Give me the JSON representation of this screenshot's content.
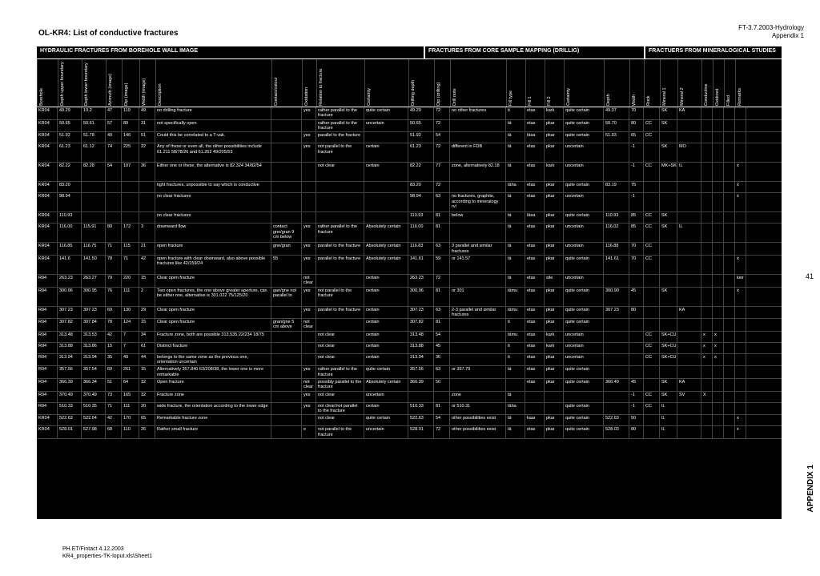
{
  "page": {
    "title": "OL-KR4: List of conductive fractures",
    "doc_ref": "FT-3.7.2003-Hydrology",
    "appendix_top": "Appendix 1",
    "side_num": "41",
    "appendix_side": "APPENDIX 1",
    "footer1": "PH.ET/Fintact 4.12.2003",
    "footer2": "KR4_properties-TK-loput.xls\\Sheet1"
  },
  "sections": {
    "s1": "HYDRAULIC FRACTURES FROM BOREHOLE WALL IMAGE",
    "s2": "FRACTURES FROM CORE SAMPLE MAPPING (DRILLIG)",
    "s3": "FRACTUERS FROM MINERALOGICAL STUDIES"
  },
  "columns": [
    "Borehole",
    "Depth upper boundary",
    "Depth lower boundary",
    "Azimuth (image)",
    "Dip (image)",
    "Width (image)",
    "Description",
    "Contact/colour",
    "Oxidation",
    "Relation to fracture",
    "Certainty",
    "Drilling depth",
    "Dip (drilling)",
    "Drill note",
    "Fill type",
    "Fill 1",
    "Fill 2",
    "Certainty",
    "Depth",
    "Width",
    "Rock",
    "Mineral 1",
    "Mineral 2",
    "Conductive",
    "Oxidized",
    "Filled",
    "Remarks"
  ],
  "rows": [
    {
      "c": [
        "KR04",
        "49.29",
        "19.2",
        "47",
        "119",
        "49",
        "no drilling fracture",
        "",
        "yes",
        "rather parallel to the fracture",
        "quite certain",
        "49.29",
        "72",
        "no other fractures",
        "ti",
        "etas",
        "kark",
        "quite certain",
        "49.37",
        "70",
        "",
        "SK",
        "KA",
        "",
        "",
        "",
        ""
      ]
    },
    {
      "c": [
        "KR04",
        "50.65",
        "50.61",
        "57",
        "89",
        "31",
        "not specifically open",
        "",
        "",
        "rather parallel to the fracture",
        "uncertain",
        "50.65",
        "72",
        "",
        "tä",
        "etas",
        "pkar",
        "quite certain",
        "50.70",
        "80",
        "CC",
        "SK",
        "",
        "",
        "",
        "",
        ""
      ]
    },
    {
      "c": [
        "KR04",
        "51.92",
        "51.78",
        "49",
        "146",
        "51",
        "Could this be correlated to a T-vak.",
        "",
        "yes",
        "parallel to the fracture",
        "",
        "51.92",
        "54",
        "",
        "tä",
        "täsa",
        "pkar",
        "quite certain",
        "51.93",
        "65",
        "CC",
        "",
        "",
        "",
        "",
        "",
        ""
      ]
    },
    {
      "c": [
        "KR04",
        "61.23",
        "61.12",
        "74",
        "225",
        "22",
        "Any of these or even all, the other possibilities include 61.211 58/78/26 and 61.262 49/205/53",
        "",
        "yes",
        "not parallel to the fracture",
        "certain",
        "61.23",
        "72",
        "different in FDB",
        "tä",
        "etas",
        "pkar",
        "uncertain",
        "",
        "-1",
        "",
        "SK",
        "MO",
        "",
        "",
        "",
        ""
      ],
      "tall": true
    },
    {
      "c": [
        "KR04",
        "82.22",
        "82.28",
        "54",
        "107",
        "36",
        "Either one or these, the alternative is 82.324 34/82/54",
        "",
        "",
        "not clear",
        "certain",
        "82.22",
        "77",
        "zone, alternatively 82.18",
        "tä",
        "etas",
        "kark",
        "uncertain",
        "",
        "-1",
        "CC",
        "MK+SK",
        "IL",
        "",
        "",
        "",
        "x"
      ],
      "tall": true
    },
    {
      "c": [
        "KR04",
        "83.20",
        "",
        "",
        "",
        "",
        "tight fractures, unpossible to say which is conductive",
        "",
        "",
        "",
        "",
        "83.20",
        "72",
        "",
        "täha",
        "etas",
        "pkar",
        "quite certain",
        "83.19",
        "75",
        "",
        "",
        "",
        "",
        "",
        "",
        "x"
      ]
    },
    {
      "c": [
        "KR04",
        "98.94",
        "",
        "",
        "",
        "",
        "no clear fractures",
        "",
        "",
        "",
        "",
        "98.94",
        "63",
        "no fractures, graphite, according to mineralogy rvl",
        "tä",
        "etas",
        "pkar",
        "uncertain",
        "",
        "-1",
        "",
        "",
        "",
        "",
        "",
        "",
        "x"
      ],
      "tall": true
    },
    {
      "c": [
        "KR04",
        "110.93",
        "",
        "",
        "",
        "",
        "no clear fractures",
        "",
        "",
        "",
        "",
        "110.93",
        "81",
        "below",
        "tä",
        "täsa",
        "pkar",
        "quite certain",
        "110.93",
        "85",
        "CC",
        "SK",
        "",
        "",
        "",
        "",
        ""
      ]
    },
    {
      "c": [
        "KR04",
        "116.00",
        "115.91",
        "80",
        "172",
        "3",
        "downward flow",
        "contact gne/gran 9 cm below",
        "yes",
        "rather parallel to the fracture",
        "Absolutely certain",
        "116.00",
        "81",
        "",
        "tä",
        "etas",
        "pkar",
        "uncertain",
        "116.02",
        "85",
        "CC",
        "SK",
        "IL",
        "",
        "",
        "",
        ""
      ],
      "tall": true
    },
    {
      "c": [
        "KR04",
        "116.85",
        "116.75",
        "71",
        "115",
        "21",
        "open fracture",
        "gne/gran",
        "yes",
        "parallel to the fracture",
        "Absolutely certain",
        "116.83",
        "63",
        "3 parallel and similar fractures",
        "tä",
        "etas",
        "pkar",
        "uncertain",
        "116.88",
        "70",
        "CC",
        "",
        "",
        "",
        "",
        "",
        ""
      ]
    },
    {
      "c": [
        "KR04",
        "141.6",
        "141.50",
        "78",
        "71",
        "42",
        "open fracture with clear downward, also above possible fractures like 42/159/24",
        "55",
        "yes",
        "parallel to the fracture",
        "Absolutely certain",
        "141.61",
        "59",
        "or 141.57",
        "tä",
        "etas",
        "pkar",
        "quite certain",
        "141.61",
        "70",
        "CC",
        "",
        "",
        "",
        "",
        "",
        "x"
      ],
      "tall": true
    },
    {
      "c": [
        "R04",
        "263.23",
        "263.27",
        "79",
        "220",
        "15",
        "Clear open fracture",
        "",
        "not clear",
        "",
        "certain",
        "263.23",
        "72",
        "",
        "tä",
        "etas",
        "sile",
        "uncertain",
        "",
        "",
        "",
        "",
        "",
        "",
        "",
        "",
        "kior"
      ]
    },
    {
      "c": [
        "R04",
        "300.96",
        "300.95",
        "76",
        "111",
        "2",
        "Two open fractures, the one above greater aperture, can be either one, alternative is 301.022 75/125/20",
        "gan/gne not parallel to",
        "yes",
        "not parallel to the fracture",
        "certain",
        "300.96",
        "81",
        "or 301",
        "tämu",
        "etas",
        "pkar",
        "quite certain",
        "300.90",
        "45",
        "",
        "SK",
        "",
        "",
        "",
        "",
        "x"
      ],
      "tall": true
    },
    {
      "c": [
        "R04",
        "307.23",
        "307.23",
        "69",
        "130",
        "29",
        "Clear open fracture",
        "",
        "yes",
        "parallel to the fracture",
        "certain",
        "307.23",
        "63",
        "2-3 parallel and similar fractures",
        "tämu",
        "etas",
        "pkar",
        "quite certain",
        "307.23",
        "80",
        "",
        "",
        "KA",
        "",
        "",
        "",
        ""
      ]
    },
    {
      "c": [
        "R04",
        "307.82",
        "307.84",
        "78",
        "124",
        "15",
        "Clear open fracture",
        "gran/gne 5 cm above",
        "not clear",
        "",
        "certain",
        "307.82",
        "81",
        "",
        "ti",
        "etas",
        "pkar",
        "quite certain",
        "",
        "",
        "",
        "",
        "",
        "",
        "",
        "",
        ""
      ]
    },
    {
      "c": [
        "R04",
        "313.48",
        "313.53",
        "42",
        "7",
        "34",
        "Fracture zone, both are possible 313.535 22/234 18/75",
        "",
        "",
        "not clear",
        "certain",
        "313.48",
        "54",
        "",
        "tämu",
        "etas",
        "kark",
        "uncertain",
        "",
        "",
        "CC",
        "SK+CU",
        "",
        "x",
        "x",
        "",
        ""
      ]
    },
    {
      "c": [
        "R04",
        "313.88",
        "313.86",
        "15",
        "7",
        "61",
        "Distinct fracture",
        "",
        "",
        "not clear",
        "certain",
        "313.88",
        "45",
        "",
        "ti",
        "etas",
        "kark",
        "uncertain",
        "",
        "",
        "CC",
        "SK+CU",
        "",
        "x",
        "x",
        "",
        ""
      ]
    },
    {
      "c": [
        "R04",
        "313.94",
        "313.94",
        "35",
        "40",
        "44",
        "belongs to the same zone as the previous one, orientation uncertain",
        "",
        "",
        "not clear",
        "certain",
        "313.94",
        "36",
        "",
        "ti",
        "etas",
        "pkar",
        "uncertain",
        "",
        "",
        "CC",
        "SK+CU",
        "",
        "x",
        "x",
        "",
        ""
      ]
    },
    {
      "c": [
        "R04",
        "357.56",
        "357.54",
        "69",
        "261",
        "15",
        "Alternatively 357.840 63/208/38, the lower one is more remarkable",
        "",
        "yes",
        "rather parallel to the fracture",
        "quite certain",
        "357.56",
        "63",
        "or 357.79",
        "tä",
        "etas",
        "pkar",
        "quite certain",
        "",
        "",
        "",
        "",
        "",
        "",
        "",
        "",
        ""
      ]
    },
    {
      "c": [
        "R04",
        "366.39",
        "366.34",
        "51",
        "64",
        "32",
        "Open fracture",
        "",
        "not clear",
        "possibly parallel to the fracture",
        "Absolutely certain",
        "366.39",
        "50",
        "",
        "",
        "etas",
        "pkar",
        "quite certain",
        "366.40",
        "45",
        "",
        "SK",
        "KA",
        "",
        "",
        "",
        ""
      ]
    },
    {
      "c": [
        "R04",
        "370.49",
        "370.49",
        "73",
        "165",
        "32",
        "Fracture zone",
        "",
        "yes",
        "not clear",
        "uncertain",
        "",
        "",
        "zone",
        "tä",
        "",
        "",
        "",
        "",
        "-1",
        "CC",
        "SK",
        "SV",
        "X",
        "",
        "",
        ""
      ]
    },
    {
      "c": [
        "R04",
        "510.33",
        "510.35",
        "71",
        "111",
        "20",
        "wide fracture, the orientation according to the lower edge",
        "",
        "yes",
        "not clear/not parallel to the fracture",
        "certain",
        "510.33",
        "81",
        "or 510.31",
        "täha",
        "",
        "",
        "quite certain",
        "",
        "-1",
        "CC",
        "IL",
        "",
        "",
        "",
        "",
        ""
      ]
    },
    {
      "c": [
        "KR04",
        "522.63",
        "522.64",
        "42",
        "170",
        "65",
        "Remarkable fracture zone",
        "",
        "",
        "not clear",
        "quite certain",
        "522.63",
        "54",
        "other possibilities exist",
        "tä",
        "kaar",
        "pkar",
        "quite certain",
        "522.63",
        "50",
        "",
        "IL",
        "",
        "",
        "",
        "",
        "x"
      ]
    },
    {
      "c": [
        "KR04",
        "528.01",
        "527.98",
        "68",
        "110",
        "26",
        "Rather small fracture",
        "",
        "e",
        "not parallel to the fracture",
        "uncertain",
        "528.01",
        "72",
        "other possibilities exist",
        "tä",
        "etas",
        "pkar",
        "quite certain",
        "528.03",
        "80",
        "",
        "IL",
        "",
        "",
        "",
        "",
        "x"
      ]
    }
  ]
}
